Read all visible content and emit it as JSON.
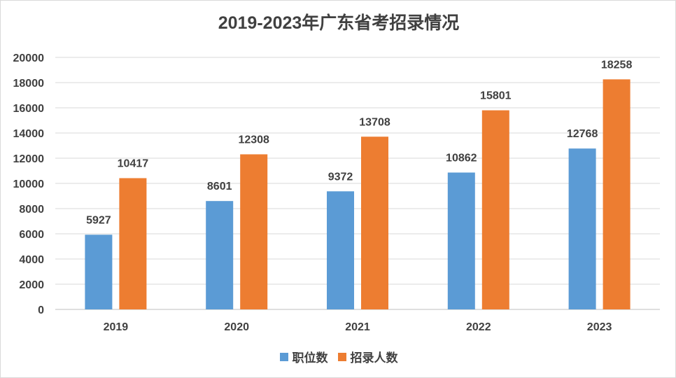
{
  "chart_data": {
    "type": "bar",
    "title": "2019-2023年广东省考招录情况",
    "categories": [
      "2019",
      "2020",
      "2021",
      "2022",
      "2023"
    ],
    "series": [
      {
        "name": "职位数",
        "values": [
          5927,
          8601,
          9372,
          10862,
          12768
        ],
        "color": "#5b9bd5"
      },
      {
        "name": "招录人数",
        "values": [
          10417,
          12308,
          13708,
          15801,
          18258
        ],
        "color": "#ed7d31"
      }
    ],
    "ylim": [
      0,
      20000
    ],
    "yticks": [
      0,
      2000,
      4000,
      6000,
      8000,
      10000,
      12000,
      14000,
      16000,
      18000,
      20000
    ],
    "grid": true,
    "legend": "bottom",
    "data_labels": true
  }
}
